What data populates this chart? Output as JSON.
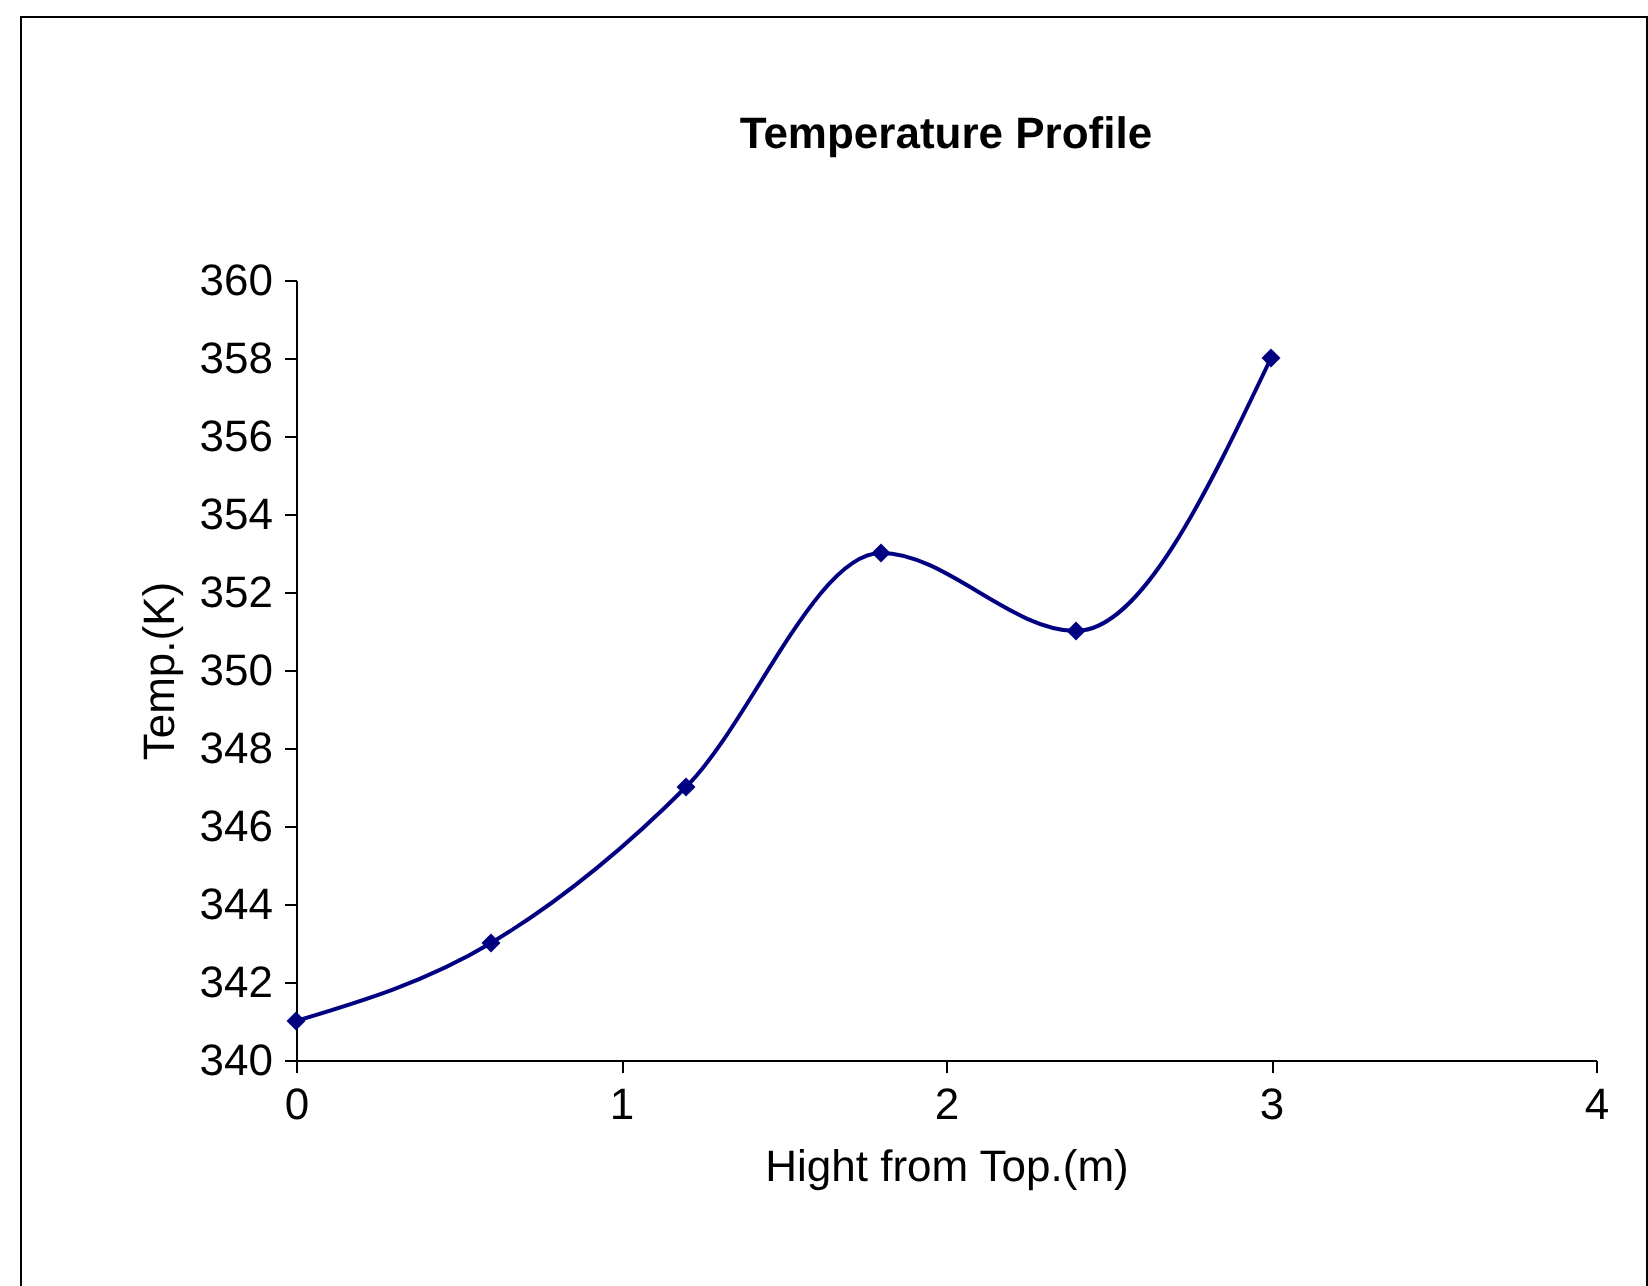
{
  "chart_data": {
    "type": "line",
    "title": "Temperature Profile",
    "xlabel": "Hight from Top.(m)",
    "ylabel": "Temp.(K)",
    "x": [
      0,
      0.6,
      1.2,
      1.8,
      2.4,
      3
    ],
    "series": [
      {
        "color": "#000080",
        "values": [
          341,
          343,
          347,
          353,
          351,
          358
        ]
      }
    ],
    "xlim": [
      0,
      4
    ],
    "xticks": [
      0,
      1,
      2,
      3,
      4
    ],
    "ylim": [
      340,
      360
    ],
    "yticks": [
      340,
      342,
      344,
      346,
      348,
      350,
      352,
      354,
      356,
      358,
      360
    ],
    "grid": false,
    "marker": "diamond",
    "line_style": "solid"
  }
}
